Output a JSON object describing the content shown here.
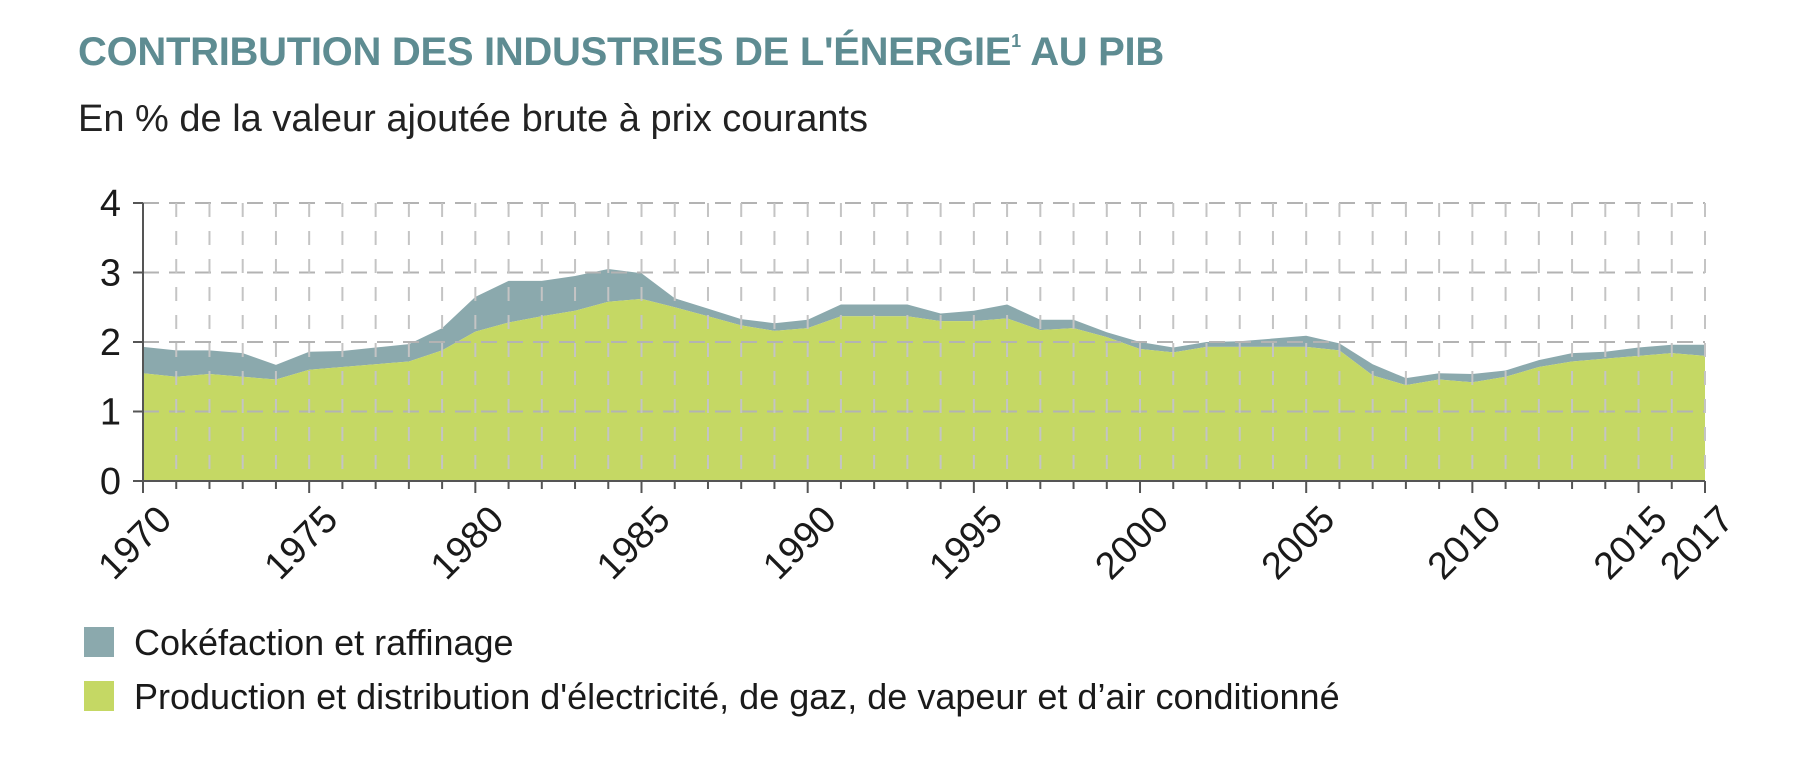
{
  "header": {
    "title": "CONTRIBUTION DES INDUSTRIES DE L'ÉNERGIE",
    "title_sup": "1",
    "title_end": " AU PIB",
    "subtitle": "En % de la valeur ajoutée brute à prix courants"
  },
  "chart_data": {
    "type": "area",
    "stacked": true,
    "title": "CONTRIBUTION DES INDUSTRIES DE L'ÉNERGIE1 AU PIB",
    "subtitle": "En % de la valeur ajoutée brute à prix courants",
    "xlabel": "",
    "ylabel": "",
    "xlim": [
      1970,
      2017
    ],
    "ylim": [
      0,
      4
    ],
    "yticks": [
      "0",
      "1",
      "2",
      "3",
      "4"
    ],
    "xticks": [
      "1970",
      "1975",
      "1980",
      "1985",
      "1990",
      "1995",
      "2000",
      "2005",
      "2010",
      "2015",
      "2017"
    ],
    "grid": true,
    "legend_position": "bottom",
    "x": [
      1970,
      1971,
      1972,
      1973,
      1974,
      1975,
      1976,
      1977,
      1978,
      1979,
      1980,
      1981,
      1982,
      1983,
      1984,
      1985,
      1986,
      1987,
      1988,
      1989,
      1990,
      1991,
      1992,
      1993,
      1994,
      1995,
      1996,
      1997,
      1998,
      1999,
      2000,
      2001,
      2002,
      2003,
      2004,
      2005,
      2006,
      2007,
      2008,
      2009,
      2010,
      2011,
      2012,
      2013,
      2014,
      2015,
      2016,
      2017
    ],
    "series": [
      {
        "name": "Production et distribution d'électricité, de gaz, de vapeur et d’air conditionné",
        "color": "#c5d864",
        "values": [
          1.55,
          1.5,
          1.54,
          1.5,
          1.46,
          1.6,
          1.64,
          1.68,
          1.72,
          1.88,
          2.15,
          2.28,
          2.37,
          2.45,
          2.58,
          2.62,
          2.5,
          2.37,
          2.24,
          2.16,
          2.2,
          2.37,
          2.37,
          2.37,
          2.3,
          2.3,
          2.34,
          2.17,
          2.2,
          2.07,
          1.9,
          1.85,
          1.93,
          1.93,
          1.93,
          1.93,
          1.88,
          1.52,
          1.38,
          1.46,
          1.42,
          1.5,
          1.64,
          1.72,
          1.76,
          1.8,
          1.84,
          1.8
        ]
      },
      {
        "name": "Cokéfaction et raffinage",
        "color": "#8ba9ad",
        "values": [
          0.38,
          0.38,
          0.34,
          0.34,
          0.21,
          0.26,
          0.23,
          0.24,
          0.25,
          0.32,
          0.5,
          0.6,
          0.51,
          0.5,
          0.47,
          0.37,
          0.13,
          0.11,
          0.09,
          0.11,
          0.12,
          0.17,
          0.17,
          0.17,
          0.11,
          0.15,
          0.2,
          0.15,
          0.12,
          0.07,
          0.1,
          0.07,
          0.07,
          0.08,
          0.12,
          0.16,
          0.1,
          0.16,
          0.1,
          0.09,
          0.12,
          0.09,
          0.1,
          0.12,
          0.1,
          0.12,
          0.12,
          0.16
        ]
      }
    ]
  }
}
